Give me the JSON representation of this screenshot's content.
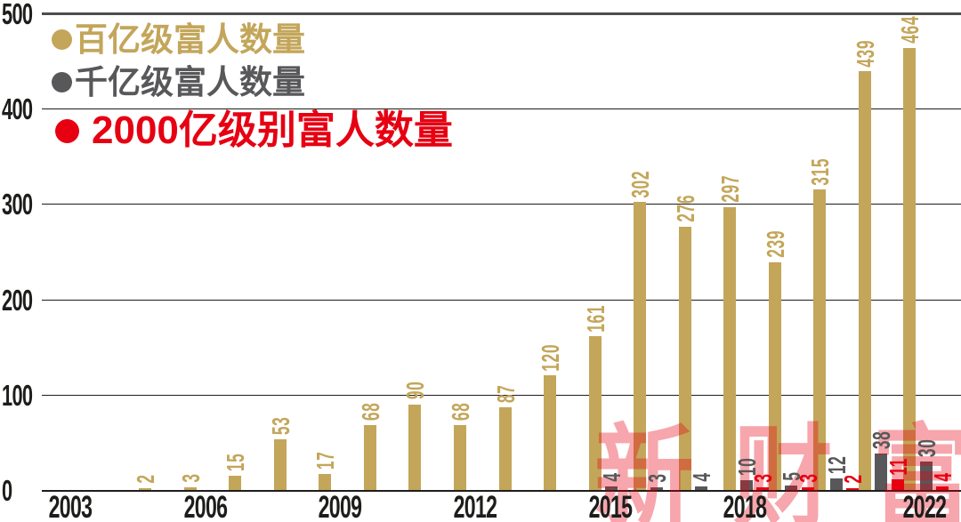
{
  "watermark": {
    "text": "新财富",
    "color_rgba": "rgba(230,0,18,0.35)"
  },
  "legend": {
    "items": [
      {
        "label": "百亿级富人数量",
        "color": "#c3a65a"
      },
      {
        "label": "千亿级富人数量",
        "color": "#58585a"
      },
      {
        "label": "2000亿级别富人数量",
        "color": "#e60012"
      }
    ]
  },
  "chart_data": {
    "type": "bar",
    "title": "",
    "xlabel": "",
    "ylabel": "",
    "years": [
      2003,
      2004,
      2005,
      2006,
      2007,
      2008,
      2009,
      2010,
      2011,
      2012,
      2013,
      2014,
      2015,
      2016,
      2017,
      2018,
      2019,
      2020,
      2021,
      2022
    ],
    "series": [
      {
        "name": "百亿级富人数量",
        "color": "#c3a65a",
        "values": [
          null,
          null,
          2,
          3,
          15,
          53,
          17,
          68,
          90,
          68,
          87,
          120,
          161,
          302,
          276,
          297,
          239,
          315,
          439,
          464
        ]
      },
      {
        "name": "千亿级富人数量",
        "color": "#58585a",
        "values": [
          null,
          null,
          null,
          null,
          null,
          null,
          null,
          null,
          null,
          null,
          null,
          null,
          4,
          3,
          4,
          10,
          5,
          12,
          38,
          30
        ]
      },
      {
        "name": "2000亿级别富人数量",
        "color": "#e60012",
        "values": [
          null,
          null,
          null,
          null,
          null,
          null,
          null,
          null,
          null,
          null,
          null,
          null,
          null,
          null,
          null,
          3,
          3,
          2,
          11,
          4
        ]
      }
    ],
    "x_tick_labels": [
      "2003",
      "2006",
      "2009",
      "2012",
      "2015",
      "2018",
      "2022"
    ],
    "y_ticks": [
      0,
      100,
      200,
      300,
      400,
      500
    ],
    "y_tick_labels": [
      "0",
      "100",
      "200",
      "300",
      "400",
      "500"
    ],
    "ylim": [
      0,
      500
    ],
    "grid": "horizontal",
    "legend_position": "top-left",
    "value_labels": "rotated-90-above-bars"
  }
}
